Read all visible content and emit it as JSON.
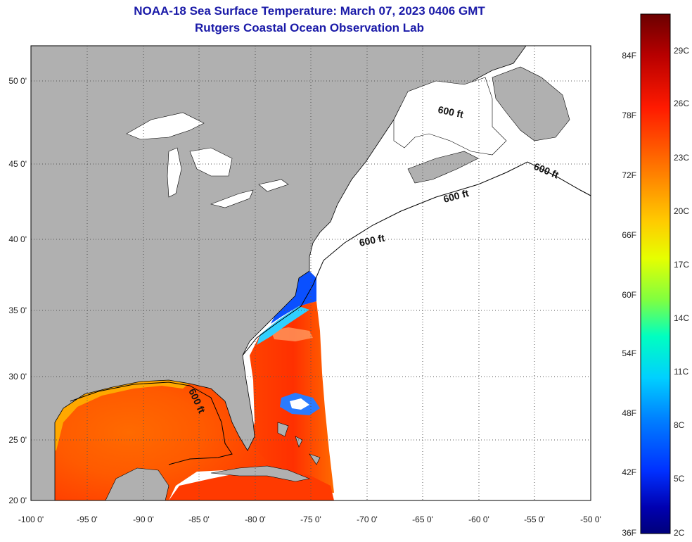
{
  "title": "NOAA-18 Sea Surface Temperature:  March 07, 2023 0406 GMT",
  "subtitle": "Rutgers Coastal Ocean Observation Lab",
  "lat_labels": [
    "50 0'",
    "45 0'",
    "40 0'",
    "35 0'",
    "30 0'",
    "25 0'",
    "20 0'"
  ],
  "lon_labels": [
    "-100 0'",
    "-95 0'",
    "-90 0'",
    "-85 0'",
    "-80 0'",
    "-75 0'",
    "-70 0'",
    "-65 0'",
    "-60 0'",
    "-55 0'",
    "-50 0'"
  ],
  "contour_label": "600 ft",
  "colorbar": {
    "fahrenheit_labels": [
      "84F",
      "78F",
      "72F",
      "66F",
      "60F",
      "54F",
      "48F",
      "42F",
      "36F"
    ],
    "celsius_labels": [
      "29C",
      "26C",
      "23C",
      "20C",
      "17C",
      "14C",
      "11C",
      "8C",
      "5C",
      "2C"
    ],
    "colors": [
      "#6b0000",
      "#b80000",
      "#ff1a00",
      "#ff7a00",
      "#ffcc00",
      "#e6ff00",
      "#80ff40",
      "#00ffc0",
      "#00d0ff",
      "#0080ff",
      "#0030ff",
      "#0000b0",
      "#00007a"
    ]
  },
  "colors": {
    "land": "#b0b0b0",
    "ocean_no_data": "#ffffff",
    "grid": "#555555",
    "title": "#1a1aa8"
  }
}
